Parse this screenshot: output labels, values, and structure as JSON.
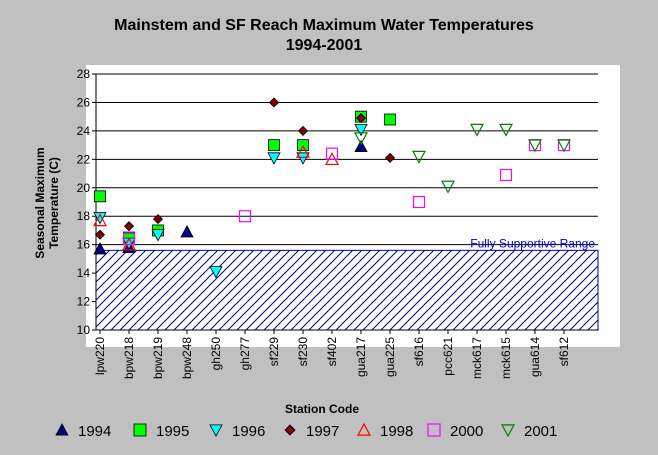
{
  "chart_data": {
    "type": "scatter",
    "title": "Mainstem and SF Reach Maximum Water Temperatures",
    "subtitle": "1994-2001",
    "xlabel": "Station Code",
    "ylabel_line1": "Seasonal Maximum",
    "ylabel_line2": "Temperature (C)",
    "ylim": [
      10,
      28
    ],
    "yticks": [
      10,
      12,
      14,
      16,
      18,
      20,
      22,
      24,
      26,
      28
    ],
    "categories": [
      "lpw220",
      "bpw218",
      "bpw219",
      "bpw248",
      "gh250",
      "gh277",
      "sf229",
      "sf230",
      "sf402",
      "gua217",
      "gua225",
      "sf616",
      "pcc621",
      "mck617",
      "mck615",
      "gua614",
      "sf612"
    ],
    "band": {
      "label": "Fully Supportive Range",
      "from": 10,
      "to": 15.6
    },
    "grid": "horizontal",
    "legend_position": "bottom",
    "series": [
      {
        "name": "1994",
        "marker": "triangle-up",
        "color": "#000080",
        "filled": true,
        "points": [
          [
            "lpw220",
            15.7
          ],
          [
            "bpw218",
            15.8
          ],
          [
            "bpw248",
            16.9
          ],
          [
            "gua217",
            22.9
          ]
        ]
      },
      {
        "name": "1995",
        "marker": "square",
        "color": "#00ff00",
        "filled": true,
        "points": [
          [
            "lpw220",
            19.4
          ],
          [
            "bpw218",
            16.5
          ],
          [
            "bpw219",
            17.0
          ],
          [
            "sf229",
            23.0
          ],
          [
            "sf230",
            23.0
          ],
          [
            "gua217",
            25.0
          ],
          [
            "gua225",
            24.8
          ]
        ]
      },
      {
        "name": "1996",
        "marker": "triangle-down",
        "color": "#00ffff",
        "filled": true,
        "points": [
          [
            "lpw220",
            17.9
          ],
          [
            "bpw218",
            16.1
          ],
          [
            "bpw219",
            16.7
          ],
          [
            "gh250",
            14.1
          ],
          [
            "sf229",
            22.1
          ],
          [
            "sf230",
            22.1
          ],
          [
            "gua217",
            24.1
          ]
        ]
      },
      {
        "name": "1997",
        "marker": "diamond",
        "color": "#800000",
        "filled": true,
        "points": [
          [
            "lpw220",
            16.7
          ],
          [
            "bpw218",
            17.3
          ],
          [
            "bpw219",
            17.8
          ],
          [
            "sf229",
            26.0
          ],
          [
            "sf230",
            24.0
          ],
          [
            "gua217",
            24.9
          ],
          [
            "gua225",
            22.1
          ]
        ]
      },
      {
        "name": "1998",
        "marker": "triangle-up",
        "color": "#ff0000",
        "filled": false,
        "points": [
          [
            "lpw220",
            17.7
          ],
          [
            "bpw218",
            16.0
          ],
          [
            "sf230",
            22.5
          ],
          [
            "sf402",
            22.0
          ]
        ]
      },
      {
        "name": "2000",
        "marker": "square",
        "color": "#ff00ff",
        "filled": false,
        "points": [
          [
            "bpw218",
            16.4
          ],
          [
            "gh277",
            18.0
          ],
          [
            "sf402",
            22.4
          ],
          [
            "sf616",
            19.0
          ],
          [
            "mck615",
            20.9
          ],
          [
            "gua614",
            23.0
          ],
          [
            "sf612",
            23.0
          ]
        ]
      },
      {
        "name": "2001",
        "marker": "triangle-down",
        "color": "#008000",
        "filled": false,
        "points": [
          [
            "gua217",
            23.5
          ],
          [
            "sf616",
            22.2
          ],
          [
            "pcc621",
            20.1
          ],
          [
            "mck617",
            24.1
          ],
          [
            "mck615",
            24.1
          ],
          [
            "gua614",
            23.0
          ],
          [
            "sf612",
            23.0
          ]
        ]
      }
    ]
  }
}
